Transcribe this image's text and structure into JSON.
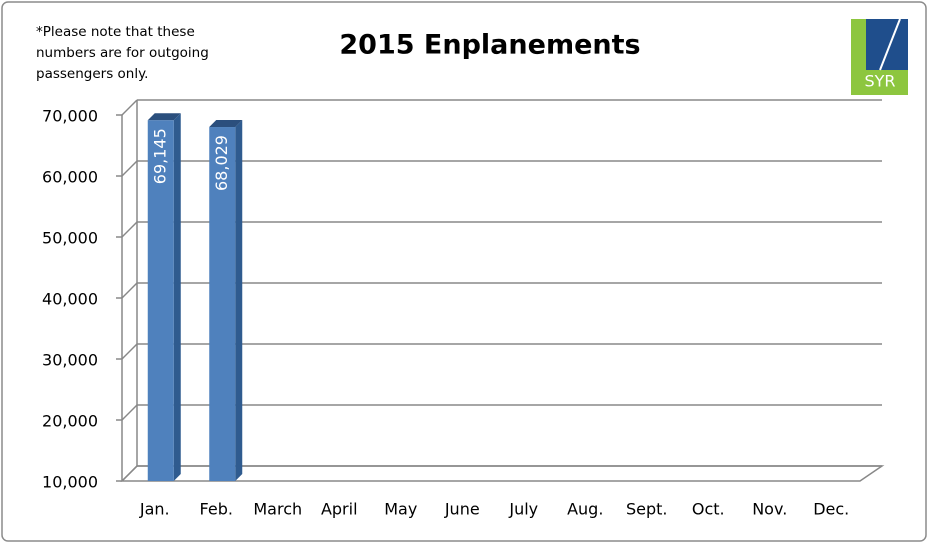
{
  "chart_data": {
    "type": "bar",
    "title": "2015 Enplanements",
    "note": "*Please note that these numbers are for outgoing passengers only.",
    "logo_text": "SYR",
    "categories": [
      "Jan.",
      "Feb.",
      "March",
      "April",
      "May",
      "June",
      "July",
      "Aug.",
      "Sept.",
      "Oct.",
      "Nov.",
      "Dec."
    ],
    "values": [
      69145,
      68029,
      null,
      null,
      null,
      null,
      null,
      null,
      null,
      null,
      null,
      null
    ],
    "value_labels": [
      "69,145",
      "68,029",
      null,
      null,
      null,
      null,
      null,
      null,
      null,
      null,
      null,
      null
    ],
    "color": "#4f81bd",
    "ylim": [
      10000,
      70000
    ],
    "yticks": [
      {
        "value": 10000,
        "label": "10,000"
      },
      {
        "value": 20000,
        "label": "20,000"
      },
      {
        "value": 30000,
        "label": "30,000"
      },
      {
        "value": 40000,
        "label": "40,000"
      },
      {
        "value": 50000,
        "label": "50,000"
      },
      {
        "value": 60000,
        "label": "60,000"
      },
      {
        "value": 70000,
        "label": "70,000"
      }
    ],
    "grid": true
  }
}
